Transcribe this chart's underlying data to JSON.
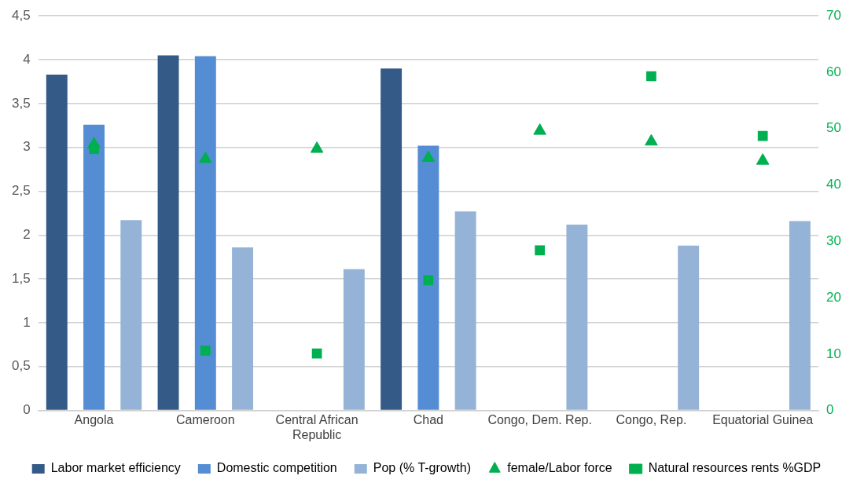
{
  "chart_data": {
    "type": "bar",
    "categories": [
      "Angola",
      "Cameroon",
      "Central African Republic",
      "Chad",
      "Congo, Dem. Rep.",
      "Congo, Rep.",
      "Equatorial Guinea"
    ],
    "series": [
      {
        "name": "Labor market efficiency",
        "color": "#345a87",
        "values": [
          3.83,
          4.05,
          null,
          3.9,
          null,
          null,
          null
        ]
      },
      {
        "name": "Domestic competition",
        "color": "#548dd4",
        "values": [
          3.26,
          4.04,
          null,
          3.02,
          null,
          null,
          null
        ]
      },
      {
        "name": "Pop (% T-growth)",
        "color": "#95b3d7",
        "values": [
          2.17,
          1.86,
          1.61,
          2.27,
          2.12,
          1.88,
          2.16
        ]
      },
      {
        "name": "female/Labor force",
        "type": "scatter",
        "marker": "triangle",
        "axis": "y2",
        "color": "#00b050",
        "values": [
          47.2,
          44.6,
          46.4,
          44.8,
          49.6,
          47.7,
          44.3
        ]
      },
      {
        "name": "Natural resources rents %GDP",
        "type": "scatter",
        "marker": "square",
        "axis": "y2",
        "color": "#00b050",
        "values": [
          46.4,
          10.6,
          10.1,
          23.1,
          28.4,
          59.3,
          48.7
        ]
      }
    ],
    "ylim": [
      0,
      4.5
    ],
    "yticks": [
      0,
      {
        "value": 0.5,
        "label": "0,5"
      },
      1,
      {
        "value": 1.5,
        "label": "1,5"
      },
      2,
      {
        "value": 2.5,
        "label": "2,5"
      },
      3,
      {
        "value": 3.5,
        "label": "3,5"
      },
      4,
      {
        "value": 4.5,
        "label": "4,5"
      }
    ],
    "y2lim": [
      0,
      70
    ],
    "y2ticks": [
      0,
      10,
      20,
      30,
      40,
      50,
      60,
      70
    ],
    "grid": "y",
    "legend": "bottom"
  }
}
